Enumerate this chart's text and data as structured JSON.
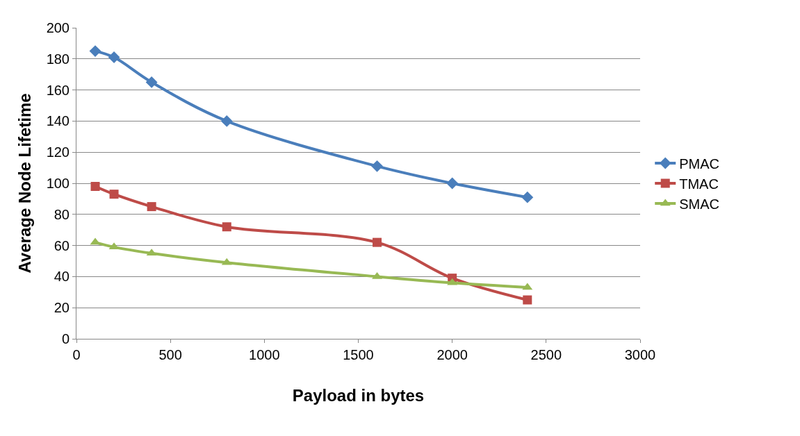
{
  "chart_data": {
    "type": "line",
    "xlabel": "Payload in bytes",
    "ylabel": "Average Node Lifetime",
    "x": [
      100,
      200,
      400,
      800,
      1600,
      2000,
      2400
    ],
    "series": [
      {
        "name": "PMAC",
        "color": "#4a7ebb",
        "marker": "diamond",
        "values": [
          185,
          181,
          165,
          140,
          111,
          100,
          91
        ]
      },
      {
        "name": "TMAC",
        "color": "#be4b48",
        "marker": "square",
        "values": [
          98,
          93,
          85,
          72,
          62,
          39,
          25
        ]
      },
      {
        "name": "SMAC",
        "color": "#98b954",
        "marker": "triangle",
        "values": [
          62,
          59,
          55,
          49,
          40,
          36,
          33
        ]
      }
    ],
    "xlim": [
      0,
      3000
    ],
    "xticks": [
      0,
      500,
      1000,
      1500,
      2000,
      2500,
      3000
    ],
    "ylim": [
      0,
      200
    ],
    "yticks": [
      0,
      20,
      40,
      60,
      80,
      100,
      120,
      140,
      160,
      180,
      200
    ],
    "grid": "y",
    "legend": "right",
    "line_style": "solid"
  }
}
